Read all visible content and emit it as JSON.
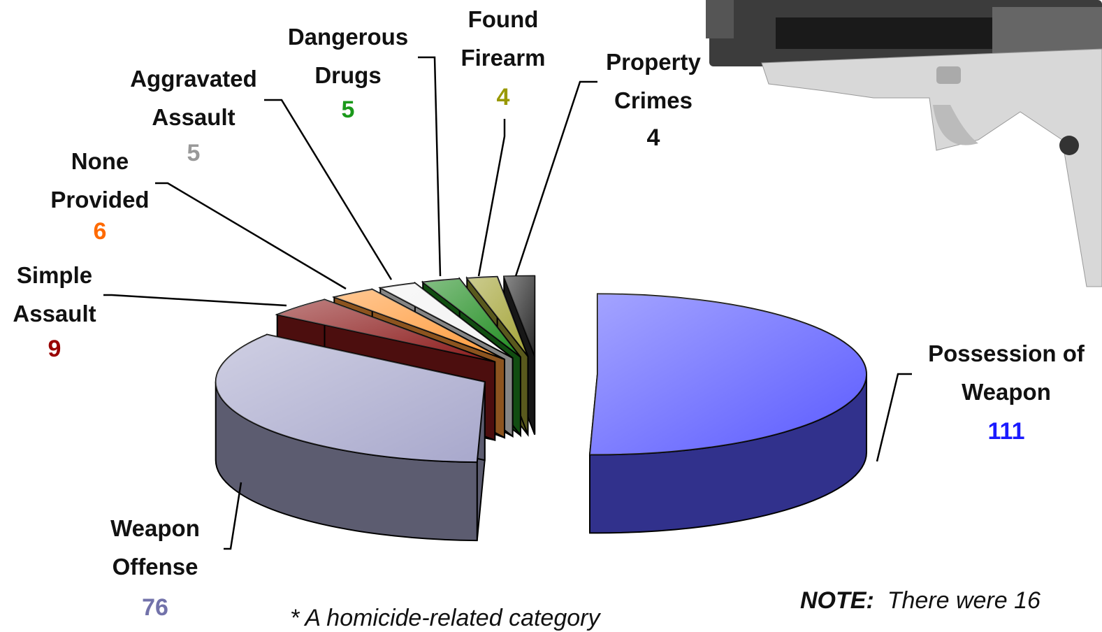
{
  "chart_data": {
    "type": "pie",
    "categories": [
      "Possession of Weapon",
      "Weapon Offense",
      "Simple Assault",
      "None Provided",
      "Aggravated Assault",
      "Dangerous Drugs",
      "Found Firearm",
      "Property Crimes"
    ],
    "values": [
      111,
      76,
      9,
      6,
      5,
      5,
      4,
      4
    ],
    "colors": [
      "#5a5aff",
      "#a8a8cc",
      "#8b1a1a",
      "#ff9a3a",
      "#f2f2f2",
      "#1f8c1f",
      "#a3a336",
      "#2a2a2a"
    ],
    "value_colors": [
      "#1a1aff",
      "#7272aa",
      "#990000",
      "#ff6a00",
      "#999999",
      "#1a991a",
      "#999900",
      "#111111"
    ],
    "notes": [
      "* A homicide-related category",
      "NOTE:",
      "There were 16"
    ]
  }
}
